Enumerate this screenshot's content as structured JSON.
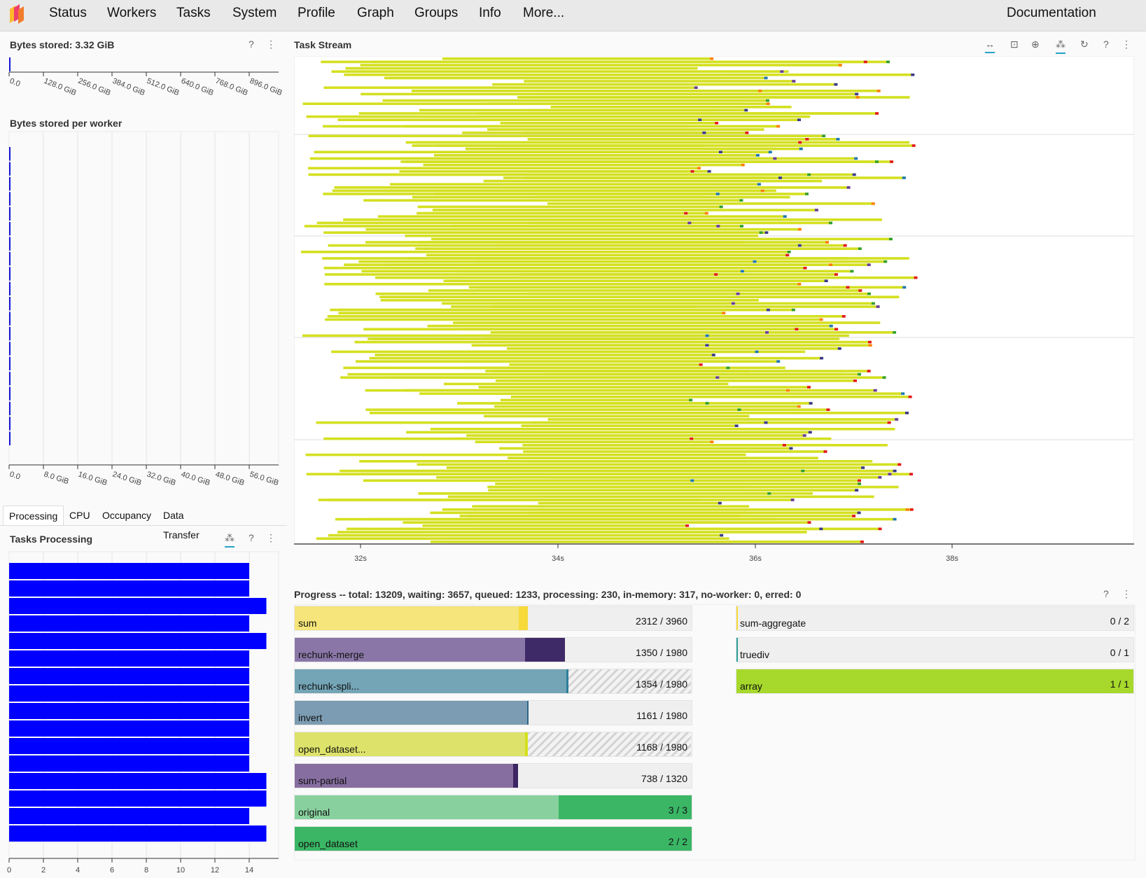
{
  "nav": {
    "items": [
      "Status",
      "Workers",
      "Tasks",
      "System",
      "Profile",
      "Graph",
      "Groups",
      "Info",
      "More..."
    ],
    "documentation": "Documentation"
  },
  "bytes_stored": {
    "title": "Bytes stored: 3.32 GiB",
    "ticks": [
      "0.0",
      "128.0 GiB",
      "256.0 GiB",
      "384.0 GiB",
      "512.0 GiB",
      "640.0 GiB",
      "768.0 GiB",
      "896.0 GiB"
    ],
    "value_gib": 3.32
  },
  "bytes_per_worker": {
    "title": "Bytes stored per worker",
    "ticks": [
      "0.0",
      "8.0 GiB",
      "16.0 GiB",
      "24.0 GiB",
      "32.0 GiB",
      "40.0 GiB",
      "48.0 GiB",
      "56.0 GiB"
    ],
    "worker_count": 20
  },
  "tabs": [
    "Processing",
    "CPU",
    "Occupancy",
    "Data Transfer"
  ],
  "tasks_processing": {
    "title": "Tasks Processing",
    "ticks": [
      "0",
      "2",
      "4",
      "6",
      "8",
      "10",
      "12",
      "14"
    ],
    "values": [
      14,
      14,
      15,
      14,
      15,
      14,
      14,
      14,
      14,
      14,
      14,
      14,
      15,
      15,
      14,
      15
    ],
    "bar_color": "#0000ff"
  },
  "task_stream": {
    "title": "Task Stream",
    "ticks": [
      "32s",
      "34s",
      "36s",
      "38s"
    ],
    "bar_color": "#d4e020"
  },
  "progress": {
    "title": "Progress -- total: 13209, waiting: 3657, queued: 1233, processing: 230, in-memory: 317, no-worker: 0, erred: 0",
    "left": [
      {
        "name": "sum",
        "count": "2312 / 3960",
        "done": 0.565,
        "mem": 0.022,
        "queued": 0,
        "light": "#f5e57a",
        "dark": "#f7d93a"
      },
      {
        "name": "rechunk-merge",
        "count": "1350 / 1980",
        "done": 0.58,
        "mem": 0.1,
        "queued": 0,
        "light": "#8a77a8",
        "dark": "#3f2a68"
      },
      {
        "name": "rechunk-spli...",
        "count": "1354 / 1980",
        "done": 0.685,
        "mem": 0.004,
        "queued": 0.31,
        "light": "#73a5b6",
        "dark": "#2d7f99"
      },
      {
        "name": "invert",
        "count": "1161 / 1980",
        "done": 0.585,
        "mem": 0.004,
        "queued": 0,
        "light": "#7b9cb2",
        "dark": "#2f6688"
      },
      {
        "name": "open_dataset...",
        "count": "1168 / 1980",
        "done": 0.58,
        "mem": 0.008,
        "queued": 0.41,
        "light": "#dde36a",
        "dark": "#d4e020"
      },
      {
        "name": "sum-partial",
        "count": "738 / 1320",
        "done": 0.55,
        "mem": 0.012,
        "queued": 0,
        "light": "#876ea0",
        "dark": "#3d2663"
      },
      {
        "name": "original",
        "count": "3 / 3",
        "done": 0.665,
        "mem": 0.335,
        "queued": 0,
        "light": "#88d19e",
        "dark": "#3ab665"
      },
      {
        "name": "open_dataset",
        "count": "2 / 2",
        "done": 0,
        "mem": 1.0,
        "queued": 0,
        "light": "#88d19e",
        "dark": "#3ab665"
      }
    ],
    "right": [
      {
        "name": "sum-aggregate",
        "count": "0 / 2",
        "done": 0,
        "mem": 0,
        "queued": 0,
        "light": "#f5e57a",
        "dark": "#f7d93a",
        "edge": "#f7d93a"
      },
      {
        "name": "truediv",
        "count": "0 / 1",
        "done": 0,
        "mem": 0,
        "queued": 0,
        "light": "#73a5b6",
        "dark": "#2d7f99",
        "edge": "#2aa198"
      },
      {
        "name": "array",
        "count": "1 / 1",
        "done": 0,
        "mem": 1.0,
        "queued": 0,
        "light": "#a6d92b",
        "dark": "#a6d92b",
        "edge": ""
      }
    ]
  }
}
